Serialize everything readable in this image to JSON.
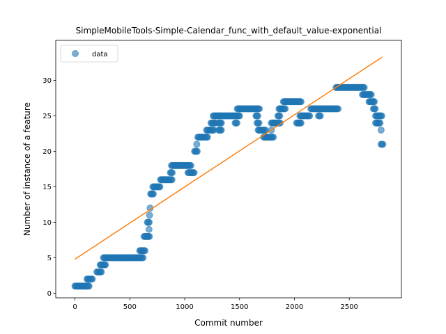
{
  "chart_data": {
    "type": "scatter",
    "title": "SimpleMobileTools-Simple-Calendar_func_with_default_value-exponential",
    "xlabel": "Commit number",
    "ylabel": "Number of instance of a feature",
    "xlim": [
      -175,
      2975
    ],
    "ylim": [
      -0.65,
      35.65
    ],
    "xticks": [
      0,
      500,
      1000,
      1500,
      2000,
      2500
    ],
    "yticks": [
      0,
      5,
      10,
      15,
      20,
      25,
      30
    ],
    "grid": false,
    "legend": {
      "placement": "top-left",
      "entries": [
        "data"
      ]
    },
    "colors": {
      "points": "#1f77b4",
      "fit": "#ff7f0e"
    },
    "series": [
      {
        "name": "data",
        "kind": "scatter",
        "segments": [
          [
            0,
            130,
            1
          ],
          [
            110,
            165,
            2
          ],
          [
            200,
            245,
            3
          ],
          [
            230,
            280,
            4
          ],
          [
            260,
            620,
            5
          ],
          [
            590,
            640,
            6
          ],
          [
            630,
            680,
            8
          ],
          [
            660,
            680,
            10
          ],
          [
            690,
            720,
            14
          ],
          [
            710,
            780,
            15
          ],
          [
            780,
            890,
            16
          ],
          [
            870,
            890,
            17
          ],
          [
            880,
            1060,
            18
          ],
          [
            1030,
            1090,
            17
          ],
          [
            1090,
            1120,
            20
          ],
          [
            1120,
            1210,
            22
          ],
          [
            1200,
            1270,
            23
          ],
          [
            1240,
            1280,
            24
          ],
          [
            1260,
            1500,
            25
          ],
          [
            1310,
            1340,
            24
          ],
          [
            1310,
            1340,
            23
          ],
          [
            1460,
            1480,
            24
          ],
          [
            1480,
            1680,
            26
          ],
          [
            1650,
            1670,
            25
          ],
          [
            1660,
            1680,
            24
          ],
          [
            1670,
            1740,
            23
          ],
          [
            1720,
            1810,
            22
          ],
          [
            1790,
            1870,
            24
          ],
          [
            1850,
            1870,
            25
          ],
          [
            1860,
            1920,
            26
          ],
          [
            1900,
            2060,
            27
          ],
          [
            2020,
            2060,
            24
          ],
          [
            2050,
            2140,
            25
          ],
          [
            2150,
            2400,
            26
          ],
          [
            2220,
            2240,
            25
          ],
          [
            2380,
            2640,
            29
          ],
          [
            2620,
            2700,
            28
          ],
          [
            2680,
            2730,
            27
          ],
          [
            2720,
            2740,
            26
          ],
          [
            2740,
            2800,
            25
          ],
          [
            2740,
            2780,
            24
          ],
          [
            2790,
            2810,
            21
          ]
        ],
        "points": [
          [
            1110,
            21
          ],
          [
            685,
            12
          ],
          [
            680,
            11
          ],
          [
            675,
            9
          ],
          [
            1790,
            23
          ],
          [
            2790,
            23
          ]
        ]
      },
      {
        "name": "",
        "kind": "line",
        "x": [
          0,
          2800
        ],
        "y": [
          4.8,
          33.3
        ]
      }
    ]
  }
}
